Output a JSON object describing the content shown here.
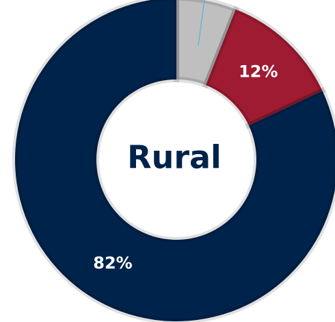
{
  "chart_data": {
    "type": "donut",
    "title": "Rural",
    "values": [
      6,
      12,
      82
    ],
    "value_labels": [
      null,
      "12%",
      "82%"
    ],
    "colors": [
      "#bfbfbf",
      "#9e1b32",
      "#00234b"
    ]
  }
}
